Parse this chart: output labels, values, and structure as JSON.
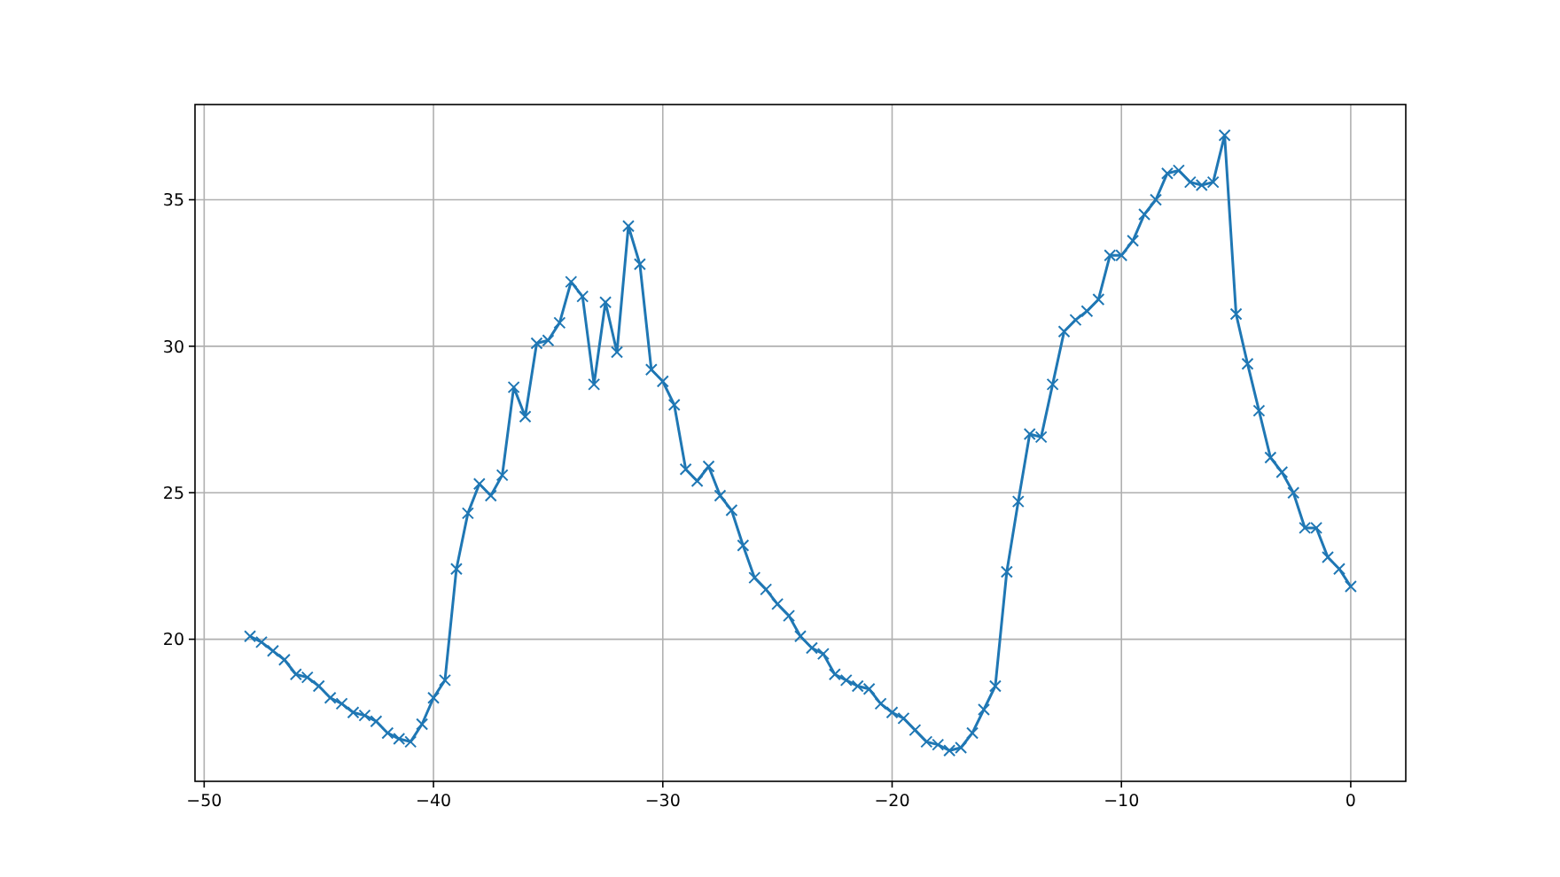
{
  "chart_data": {
    "type": "line",
    "x": [
      -48,
      -47.5,
      -47,
      -46.5,
      -46,
      -45.5,
      -45,
      -44.5,
      -44,
      -43.5,
      -43,
      -42.5,
      -42,
      -41.5,
      -41,
      -40.5,
      -40,
      -39.5,
      -39,
      -38.5,
      -38,
      -37.5,
      -37,
      -36.5,
      -36,
      -35.5,
      -35,
      -34.5,
      -34,
      -33.5,
      -33,
      -32.5,
      -32,
      -31.5,
      -31,
      -30.5,
      -30,
      -29.5,
      -29,
      -28.5,
      -28,
      -27.5,
      -27,
      -26.5,
      -26,
      -25.5,
      -25,
      -24.5,
      -24,
      -23.5,
      -23,
      -22.5,
      -22,
      -21.5,
      -21,
      -20.5,
      -20,
      -19.5,
      -19,
      -18.5,
      -18,
      -17.5,
      -17,
      -16.5,
      -16,
      -15.5,
      -15,
      -14.5,
      -14,
      -13.5,
      -13,
      -12.5,
      -12,
      -11.5,
      -11,
      -10.5,
      -10,
      -9.5,
      -9,
      -8.5,
      -8,
      -7.5,
      -7,
      -6.5,
      -6,
      -5.5,
      -5,
      -4.5,
      -4,
      -3.5,
      -3,
      -2.5,
      -2,
      -1.5,
      -1,
      -0.5,
      0
    ],
    "series": [
      {
        "color": "#1f77b4",
        "values": [
          20.1,
          19.9,
          19.6,
          19.3,
          18.8,
          18.7,
          18.4,
          18.0,
          17.8,
          17.5,
          17.4,
          17.2,
          16.8,
          16.6,
          16.5,
          17.1,
          18.0,
          18.6,
          22.4,
          24.3,
          25.3,
          24.9,
          25.6,
          28.6,
          27.6,
          30.1,
          30.2,
          30.8,
          32.2,
          31.7,
          28.7,
          31.5,
          29.8,
          34.1,
          32.8,
          29.2,
          28.8,
          28.0,
          25.8,
          25.4,
          25.9,
          24.9,
          24.4,
          23.2,
          22.1,
          21.7,
          21.2,
          20.8,
          20.1,
          19.7,
          19.5,
          18.8,
          18.6,
          18.4,
          18.3,
          17.8,
          17.5,
          17.3,
          16.9,
          16.5,
          16.4,
          16.2,
          16.3,
          16.8,
          17.6,
          18.4,
          22.3,
          24.7,
          27.0,
          26.9,
          28.7,
          30.5,
          30.9,
          31.2,
          31.6,
          33.1,
          33.1,
          33.6,
          34.5,
          35.0,
          35.9,
          36.0,
          35.6,
          35.5,
          35.6,
          37.2,
          31.1,
          29.4,
          27.8,
          26.2,
          25.7,
          25.0,
          23.8,
          23.8,
          22.8,
          22.4,
          21.8
        ]
      }
    ],
    "xlim": [
      -50.4,
      2.4
    ],
    "ylim": [
      15.15,
      38.25
    ],
    "xticks": [
      {
        "value": -50,
        "label": "−50"
      },
      {
        "value": -40,
        "label": "−40"
      },
      {
        "value": -30,
        "label": "−30"
      },
      {
        "value": -20,
        "label": "−20"
      },
      {
        "value": -10,
        "label": "−10"
      },
      0
    ],
    "yticks": [
      20,
      25,
      30,
      35
    ],
    "grid": true,
    "marker": "cross",
    "line_style": "solid"
  }
}
